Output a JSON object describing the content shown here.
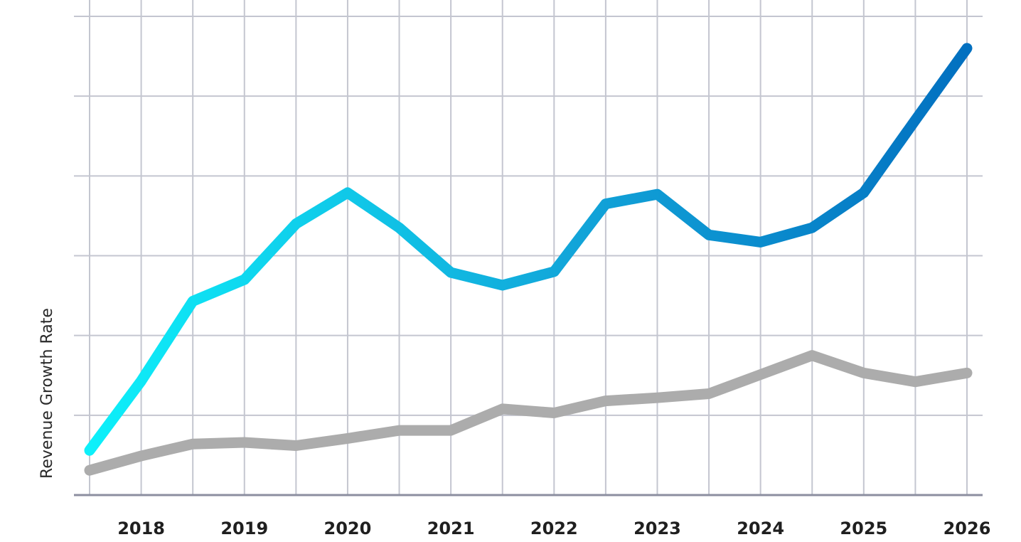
{
  "chart_data": {
    "type": "line",
    "title": "",
    "xlabel": "",
    "ylabel": "Revenue Growth Rate",
    "x": [
      2017.5,
      2018,
      2018.5,
      2019,
      2019.5,
      2020,
      2020.5,
      2021,
      2021.5,
      2022,
      2022.5,
      2023,
      2023.5,
      2024,
      2024.5,
      2025,
      2025.5,
      2026
    ],
    "x_tick_labels": [
      "2018",
      "2019",
      "2020",
      "2021",
      "2022",
      "2023",
      "2024",
      "2025",
      "2026"
    ],
    "x_ticks": [
      2018,
      2019,
      2020,
      2021,
      2022,
      2023,
      2024,
      2025,
      2026
    ],
    "xlim": [
      2017.5,
      2026
    ],
    "ylim": [
      0,
      6
    ],
    "y_grid_values": [
      1,
      2,
      3,
      4,
      5,
      6
    ],
    "y_tick_labels_shown": false,
    "grid": true,
    "legend": "none",
    "series": [
      {
        "values": [
          0.56,
          1.43,
          2.43,
          2.7,
          3.4,
          3.79,
          3.35,
          2.79,
          2.63,
          2.8,
          3.65,
          3.77,
          3.26,
          3.17,
          3.35,
          3.79,
          4.7,
          5.6
        ],
        "color_start": "#0df0fa",
        "color_mid": "#12a5d9",
        "color_end": "#0270c0"
      },
      {
        "values": [
          0.31,
          0.49,
          0.64,
          0.66,
          0.62,
          0.71,
          0.81,
          0.81,
          1.08,
          1.03,
          1.18,
          1.22,
          1.27,
          1.51,
          1.75,
          1.53,
          1.42,
          1.53
        ],
        "color": "#acacac"
      }
    ]
  },
  "colors": {
    "grid": "#c4c6d0",
    "axis": "#8c8fa0",
    "text": "#1f1f1f"
  }
}
